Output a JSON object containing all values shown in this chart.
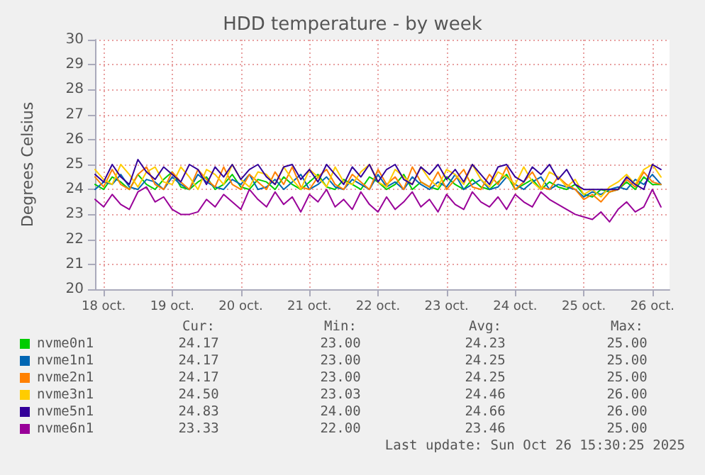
{
  "chart_data": {
    "type": "line",
    "title": "HDD temperature - by week",
    "ylabel": "Degrees Celsius",
    "xlim": [
      "2025-10-18T09:00",
      "2025-10-26T18:00"
    ],
    "xticks": [
      {
        "value": "2025-10-18T12:00",
        "label": "18 oct."
      },
      {
        "value": "2025-10-19T12:00",
        "label": "19 oct."
      },
      {
        "value": "2025-10-20T12:00",
        "label": "20 oct."
      },
      {
        "value": "2025-10-21T12:00",
        "label": "21 oct."
      },
      {
        "value": "2025-10-22T12:00",
        "label": "22 oct."
      },
      {
        "value": "2025-10-23T12:00",
        "label": "23 oct."
      },
      {
        "value": "2025-10-24T12:00",
        "label": "24 oct."
      },
      {
        "value": "2025-10-25T12:00",
        "label": "25 oct."
      },
      {
        "value": "2025-10-26T12:00",
        "label": "26 oct."
      }
    ],
    "ylim": [
      20,
      30
    ],
    "yticks": [
      20,
      21,
      22,
      23,
      24,
      25,
      26,
      27,
      28,
      29,
      30
    ],
    "grid": true,
    "legend": "bottom",
    "marker": "none",
    "line_style": "solid",
    "x": [
      "2025-10-18T09:00",
      "2025-10-18T12:00",
      "2025-10-18T15:00",
      "2025-10-18T18:00",
      "2025-10-18T21:00",
      "2025-10-19T00:00",
      "2025-10-19T03:00",
      "2025-10-19T06:00",
      "2025-10-19T09:00",
      "2025-10-19T12:00",
      "2025-10-19T15:00",
      "2025-10-19T18:00",
      "2025-10-19T21:00",
      "2025-10-20T00:00",
      "2025-10-20T03:00",
      "2025-10-20T06:00",
      "2025-10-20T09:00",
      "2025-10-20T12:00",
      "2025-10-20T15:00",
      "2025-10-20T18:00",
      "2025-10-20T21:00",
      "2025-10-21T00:00",
      "2025-10-21T03:00",
      "2025-10-21T06:00",
      "2025-10-21T09:00",
      "2025-10-21T12:00",
      "2025-10-21T15:00",
      "2025-10-21T18:00",
      "2025-10-21T21:00",
      "2025-10-22T00:00",
      "2025-10-22T03:00",
      "2025-10-22T06:00",
      "2025-10-22T09:00",
      "2025-10-22T12:00",
      "2025-10-22T15:00",
      "2025-10-22T18:00",
      "2025-10-22T21:00",
      "2025-10-23T00:00",
      "2025-10-23T03:00",
      "2025-10-23T06:00",
      "2025-10-23T09:00",
      "2025-10-23T12:00",
      "2025-10-23T15:00",
      "2025-10-23T18:00",
      "2025-10-23T21:00",
      "2025-10-24T00:00",
      "2025-10-24T03:00",
      "2025-10-24T06:00",
      "2025-10-24T09:00",
      "2025-10-24T12:00",
      "2025-10-24T15:00",
      "2025-10-24T18:00",
      "2025-10-24T21:00",
      "2025-10-25T00:00",
      "2025-10-25T03:00",
      "2025-10-25T06:00",
      "2025-10-25T09:00",
      "2025-10-25T12:00",
      "2025-10-25T15:00",
      "2025-10-25T18:00",
      "2025-10-25T21:00",
      "2025-10-26T00:00",
      "2025-10-26T03:00",
      "2025-10-26T06:00",
      "2025-10-26T09:00",
      "2025-10-26T12:00",
      "2025-10-26T15:00"
    ],
    "series": [
      {
        "name": "nvme0n1",
        "color": "#00cc00",
        "values": [
          24.2,
          24.0,
          24.5,
          24.3,
          24.0,
          24.6,
          24.2,
          24.0,
          24.4,
          24.7,
          24.1,
          24.0,
          24.3,
          24.5,
          24.0,
          24.2,
          24.6,
          24.1,
          24.0,
          24.4,
          24.3,
          24.0,
          24.5,
          24.2,
          24.0,
          24.3,
          24.6,
          24.1,
          24.0,
          24.4,
          24.2,
          24.0,
          24.5,
          24.3,
          24.0,
          24.2,
          24.6,
          24.0,
          24.3,
          24.1,
          24.0,
          24.5,
          24.2,
          24.0,
          24.4,
          24.1,
          24.0,
          24.3,
          24.6,
          24.0,
          24.2,
          24.4,
          24.0,
          24.3,
          24.1,
          24.0,
          24.2,
          23.8,
          23.7,
          24.0,
          23.9,
          24.0,
          24.3,
          24.0,
          24.5,
          24.2,
          24.2
        ]
      },
      {
        "name": "nvme1n1",
        "color": "#0066b3",
        "values": [
          24.0,
          24.3,
          24.2,
          24.6,
          24.1,
          24.0,
          24.4,
          24.3,
          24.0,
          24.5,
          24.2,
          24.0,
          24.6,
          24.3,
          24.1,
          24.0,
          24.4,
          24.2,
          24.6,
          24.0,
          24.1,
          24.4,
          24.0,
          24.3,
          24.6,
          24.0,
          24.2,
          24.5,
          24.1,
          24.0,
          24.4,
          24.2,
          24.0,
          24.6,
          24.1,
          24.3,
          24.0,
          24.5,
          24.2,
          24.0,
          24.3,
          24.1,
          24.6,
          24.0,
          24.2,
          24.4,
          24.0,
          24.1,
          24.5,
          24.2,
          24.0,
          24.3,
          24.5,
          24.0,
          24.2,
          24.1,
          24.0,
          23.7,
          23.9,
          23.8,
          24.0,
          24.1,
          24.0,
          24.4,
          24.2,
          24.6,
          24.2
        ]
      },
      {
        "name": "nvme2n1",
        "color": "#ff8000",
        "values": [
          24.5,
          24.1,
          24.8,
          24.2,
          24.0,
          24.6,
          24.9,
          24.2,
          24.0,
          24.7,
          24.3,
          24.0,
          24.8,
          24.4,
          24.1,
          24.9,
          24.2,
          24.0,
          24.6,
          24.3,
          24.0,
          24.7,
          24.2,
          24.9,
          24.1,
          24.0,
          24.5,
          24.8,
          24.2,
          24.0,
          24.6,
          24.3,
          24.0,
          24.8,
          24.2,
          24.5,
          24.0,
          24.9,
          24.3,
          24.1,
          24.7,
          24.0,
          24.4,
          24.8,
          24.1,
          24.0,
          24.6,
          24.2,
          24.9,
          24.0,
          24.3,
          24.7,
          24.1,
          24.0,
          24.5,
          24.2,
          24.0,
          23.6,
          23.8,
          23.5,
          23.9,
          24.0,
          24.4,
          24.1,
          24.7,
          24.3,
          24.2
        ]
      },
      {
        "name": "nvme3n1",
        "color": "#ffcc00",
        "values": [
          24.8,
          24.4,
          24.2,
          25.0,
          24.6,
          24.1,
          24.7,
          24.9,
          24.3,
          24.2,
          24.9,
          24.5,
          24.0,
          24.8,
          24.6,
          24.2,
          25.0,
          24.4,
          24.1,
          24.7,
          24.6,
          24.2,
          24.9,
          24.4,
          24.0,
          24.8,
          24.5,
          24.1,
          24.9,
          24.3,
          24.2,
          24.7,
          25.0,
          24.3,
          24.1,
          24.8,
          24.5,
          24.2,
          24.9,
          24.4,
          24.1,
          24.8,
          24.6,
          24.2,
          25.0,
          24.4,
          24.1,
          24.7,
          24.5,
          24.2,
          24.9,
          24.3,
          24.0,
          24.7,
          24.5,
          24.1,
          24.4,
          23.8,
          24.0,
          23.7,
          24.1,
          24.3,
          24.6,
          24.2,
          24.8,
          25.0,
          24.5
        ]
      },
      {
        "name": "nvme5n1",
        "color": "#330099",
        "values": [
          24.6,
          24.3,
          25.0,
          24.5,
          24.2,
          25.2,
          24.7,
          24.4,
          24.9,
          24.6,
          24.3,
          25.0,
          24.8,
          24.2,
          24.9,
          24.5,
          25.0,
          24.4,
          24.8,
          25.0,
          24.5,
          24.2,
          24.9,
          25.0,
          24.4,
          24.8,
          24.3,
          25.0,
          24.6,
          24.2,
          24.9,
          24.5,
          25.0,
          24.3,
          24.8,
          25.0,
          24.4,
          24.2,
          24.9,
          24.6,
          25.0,
          24.4,
          24.8,
          24.3,
          25.0,
          24.6,
          24.2,
          24.9,
          25.0,
          24.5,
          24.3,
          24.9,
          24.6,
          25.0,
          24.4,
          24.8,
          24.2,
          24.0,
          24.0,
          24.0,
          24.0,
          24.0,
          24.5,
          24.2,
          24.0,
          25.0,
          24.8
        ]
      },
      {
        "name": "nvme6n1",
        "color": "#990099",
        "values": [
          23.6,
          23.3,
          23.8,
          23.4,
          23.2,
          23.9,
          24.1,
          23.5,
          23.7,
          23.2,
          23.0,
          23.0,
          23.1,
          23.6,
          23.3,
          23.8,
          23.5,
          23.2,
          24.0,
          23.6,
          23.3,
          23.9,
          23.4,
          23.7,
          23.1,
          23.8,
          23.5,
          24.0,
          23.3,
          23.6,
          23.2,
          23.9,
          23.4,
          23.1,
          23.7,
          23.2,
          23.5,
          23.9,
          23.3,
          23.6,
          23.1,
          23.8,
          23.4,
          23.2,
          23.9,
          23.5,
          23.3,
          23.7,
          23.2,
          23.8,
          23.5,
          23.3,
          23.9,
          23.6,
          23.4,
          23.2,
          23.0,
          22.9,
          22.8,
          23.1,
          22.7,
          23.2,
          23.5,
          23.1,
          23.3,
          24.0,
          23.3
        ]
      }
    ],
    "annotations": [
      "Cur:",
      "Min:",
      "Avg:",
      "Max:",
      "24.17",
      "23.00",
      "24.23",
      "25.00",
      "24.17",
      "23.00",
      "24.25",
      "25.00",
      "24.17",
      "23.00",
      "24.25",
      "25.00",
      "24.50",
      "23.03",
      "24.46",
      "26.00",
      "24.83",
      "24.00",
      "24.66",
      "26.00",
      "23.33",
      "22.00",
      "23.46",
      "25.00",
      "Last update: Sun Oct 26 15:30:25 2025"
    ]
  }
}
